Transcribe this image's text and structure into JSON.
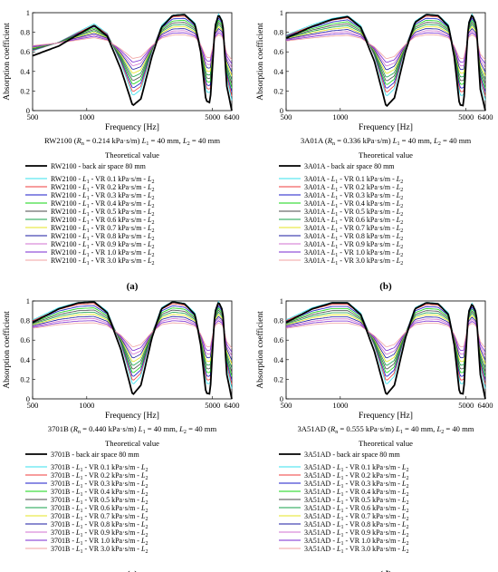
{
  "figure": {
    "theoretical_caption": "Theoretical value",
    "xlabel": "Frequency [Hz]",
    "ylabel": "Absorption coefficient",
    "x_ticks": [
      "500",
      "1000",
      "5000",
      "6400"
    ],
    "y_ticks": [
      "0",
      "0.2",
      "0.4",
      "0.6",
      "0.8",
      "1"
    ]
  },
  "series_colors": [
    "#35e0ee",
    "#ef3b3b",
    "#1818c8",
    "#10d410",
    "#4a4a4a",
    "#16a048",
    "#e6e620",
    "#1a1aa0",
    "#d070d0",
    "#7a2ad0",
    "#f0a0a0"
  ],
  "vr_labels": [
    "VR 0.1 kPa·s/m",
    "VR 0.2 kPa·s/m",
    "VR 0.3 kPa·s/m",
    "VR 0.4 kPa·s/m",
    "VR 0.5 kPa·s/m",
    "VR 0.6 kPa·s/m",
    "VR 0.7 kPa·s/m",
    "VR 0.8 kPa·s/m",
    "VR 0.9 kPa·s/m",
    "VR 1.0 kPa·s/m",
    "VR 3.0 kPa·s/m"
  ],
  "panels": [
    {
      "letter": "(a)",
      "sample": "RW2100",
      "rn": "0.214",
      "info_pre": "RW2100 (",
      "info_mid": " = 0.214 kPa·s/m)",
      "info_post": "= 40 mm, ",
      "info_end": "= 40 mm",
      "theory_label": "RW2100 - back air space 80 mm"
    },
    {
      "letter": "(b)",
      "sample": "3A01A",
      "rn": "0.336",
      "info_pre": "3A01A (",
      "info_mid": " = 0.336 kPa·s/m)",
      "info_post": "= 40 mm, ",
      "info_end": "= 40 mm",
      "theory_label": "3A01A - back air space 80 mm"
    },
    {
      "letter": "(c)",
      "sample": "3701B",
      "rn": "0.440",
      "info_pre": "3701B (",
      "info_mid": " = 0.440 kPa·s/m)",
      "info_post": "= 40 mm, ",
      "info_end": "= 40 mm",
      "theory_label": "3701B - back air space 80 mm"
    },
    {
      "letter": "(d)",
      "sample": "3A51AD",
      "rn": "0.555",
      "info_pre": "3A51AD (",
      "info_mid": " = 0.555 kPa·s/m)",
      "info_post": "= 40 mm, ",
      "info_end": "= 40 mm",
      "theory_label": "3A51AD - back air space 80 mm"
    }
  ],
  "chart_data": [
    {
      "type": "line",
      "title": "RW2100",
      "xlabel": "Frequency [Hz]",
      "ylabel": "Absorption coefficient",
      "xscale": "log",
      "xlim": [
        500,
        6400
      ],
      "ylim": [
        0,
        1
      ],
      "series": [
        {
          "name": "RW2100 - back air space 80 mm",
          "x": [
            500,
            700,
            900,
            1100,
            1300,
            1550,
            1800,
            2000,
            2300,
            2600,
            3000,
            3500,
            4000,
            4300,
            4600,
            4850,
            5000,
            5150,
            5400,
            5700,
            6000,
            6400
          ],
          "y": [
            0.56,
            0.66,
            0.78,
            0.87,
            0.76,
            0.42,
            0.05,
            0.12,
            0.55,
            0.85,
            0.97,
            0.98,
            0.88,
            0.6,
            0.1,
            0.08,
            0.45,
            0.85,
            0.98,
            0.9,
            0.25,
            0.0
          ]
        }
      ]
    },
    {
      "type": "line",
      "title": "3A01A",
      "xlabel": "Frequency [Hz]",
      "ylabel": "Absorption coefficient",
      "xscale": "log",
      "xlim": [
        500,
        6400
      ],
      "ylim": [
        0,
        1
      ],
      "series": [
        {
          "name": "3A01A - back air space 80 mm",
          "x": [
            500,
            700,
            900,
            1100,
            1300,
            1550,
            1800,
            2000,
            2300,
            2600,
            3000,
            3500,
            4000,
            4300,
            4600,
            4850,
            5000,
            5150,
            5400,
            5700,
            6000,
            6400
          ],
          "y": [
            0.74,
            0.86,
            0.93,
            0.96,
            0.85,
            0.5,
            0.04,
            0.13,
            0.6,
            0.9,
            0.98,
            0.97,
            0.86,
            0.55,
            0.06,
            0.05,
            0.5,
            0.88,
            0.98,
            0.88,
            0.22,
            0.0
          ]
        }
      ]
    },
    {
      "type": "line",
      "title": "3701B",
      "xlabel": "Frequency [Hz]",
      "ylabel": "Absorption coefficient",
      "xscale": "log",
      "xlim": [
        500,
        6400
      ],
      "ylim": [
        0,
        1
      ],
      "series": [
        {
          "name": "3701B - back air space 80 mm",
          "x": [
            500,
            700,
            900,
            1100,
            1300,
            1550,
            1800,
            2000,
            2300,
            2600,
            3000,
            3500,
            4000,
            4300,
            4600,
            4850,
            5000,
            5150,
            5400,
            5700,
            6000,
            6400
          ],
          "y": [
            0.78,
            0.92,
            0.98,
            0.99,
            0.88,
            0.5,
            0.04,
            0.14,
            0.62,
            0.92,
            0.99,
            0.97,
            0.86,
            0.55,
            0.06,
            0.05,
            0.5,
            0.88,
            0.99,
            0.9,
            0.25,
            0.0
          ]
        }
      ]
    },
    {
      "type": "line",
      "title": "3A51AD",
      "xlabel": "Frequency [Hz]",
      "ylabel": "Absorption coefficient",
      "xscale": "log",
      "xlim": [
        500,
        6400
      ],
      "ylim": [
        0,
        1
      ],
      "series": [
        {
          "name": "3A51AD - back air space 80 mm",
          "x": [
            500,
            700,
            900,
            1100,
            1300,
            1550,
            1800,
            2000,
            2300,
            2600,
            3000,
            3500,
            4000,
            4300,
            4600,
            4850,
            5000,
            5150,
            5400,
            5700,
            6000,
            6400
          ],
          "y": [
            0.78,
            0.92,
            0.98,
            0.98,
            0.86,
            0.48,
            0.04,
            0.14,
            0.62,
            0.92,
            0.98,
            0.97,
            0.86,
            0.55,
            0.06,
            0.05,
            0.5,
            0.88,
            0.97,
            0.88,
            0.25,
            0.0
          ]
        }
      ]
    }
  ]
}
